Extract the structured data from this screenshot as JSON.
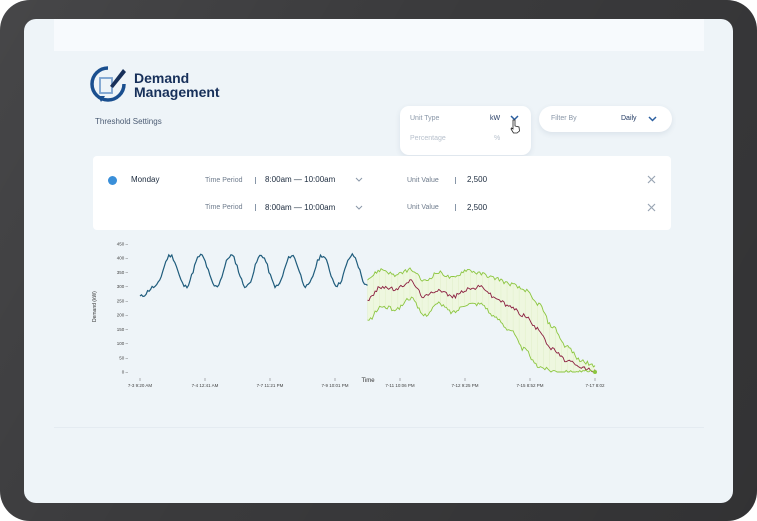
{
  "logo": {
    "line1": "Demand",
    "line2": "Management"
  },
  "threshold_title": "Threshold Settings",
  "unit_type": {
    "label": "Unit Type",
    "value": "kW",
    "option": "Percentage",
    "option_value": "%"
  },
  "filter": {
    "label": "Filter By",
    "value": "Daily"
  },
  "rule": {
    "day": "Monday",
    "rows": [
      {
        "period_label": "Time Period",
        "period_value": "8:00am — 10:00am",
        "unit_label": "Unit Value",
        "unit_value": "2,500"
      },
      {
        "period_label": "Time Period",
        "period_value": "8:00am — 10:00am",
        "unit_label": "Unit Value",
        "unit_value": "2,500"
      }
    ]
  },
  "chart_data": {
    "type": "line",
    "ylabel": "Demand (kW)",
    "xlabel": "Time",
    "ylim": [
      0,
      450
    ],
    "y_ticks": [
      "450",
      "400",
      "350",
      "300",
      "250",
      "200",
      "150",
      "100",
      "50",
      "0"
    ],
    "x_ticks": [
      "7-3 9:20 AM",
      "7-4 12:41 AM",
      "7-7 11:21 PM",
      "7-9 10:01 PM",
      "7-11 10:06 PM",
      "7-12 9:25 PM",
      "7-15 8:52 PM",
      "7-17 8:02"
    ],
    "series": [
      {
        "name": "",
        "color": "#1f5c7c",
        "x_range": [
          0,
          0.5
        ],
        "values": [
          265,
          300,
          410,
          300,
          410,
          300,
          410,
          300,
          410,
          300,
          410,
          300,
          410,
          305,
          410,
          300
        ]
      },
      {
        "name": "",
        "color": "#8b1e3f",
        "x_range": [
          0.5,
          1.0
        ],
        "values": [
          255,
          300,
          290,
          320,
          265,
          290,
          265,
          290,
          300,
          260,
          230,
          200,
          150,
          80,
          40,
          15,
          5
        ]
      },
      {
        "name": "",
        "color": "#8cc63f",
        "x_range": [
          0.5,
          1.0
        ],
        "values": [
          330,
          360,
          340,
          360,
          320,
          350,
          330,
          360,
          345,
          330,
          310,
          290,
          240,
          160,
          90,
          40,
          20
        ]
      },
      {
        "name": "",
        "color": "#8cc63f",
        "x_range": [
          0.5,
          1.0
        ],
        "values": [
          180,
          230,
          220,
          260,
          200,
          240,
          210,
          240,
          240,
          190,
          150,
          80,
          20,
          5,
          0,
          0,
          0
        ]
      }
    ],
    "grid": false
  }
}
